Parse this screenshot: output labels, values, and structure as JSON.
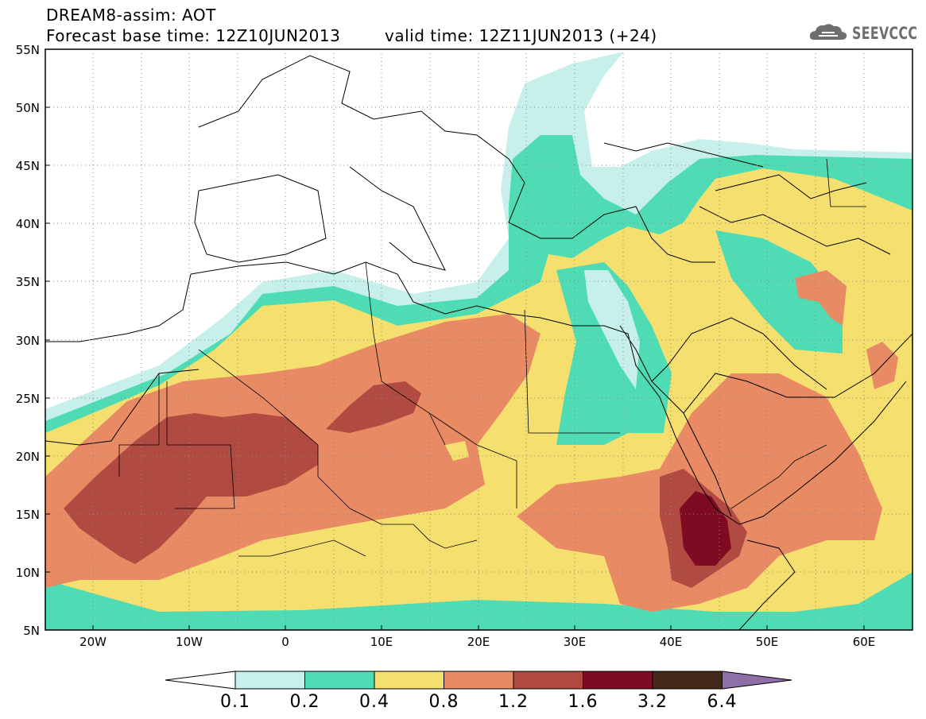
{
  "header": {
    "title_line1": "DREAM8-assim: AOT",
    "title_line2": "Forecast base time: 12Z10JUN2013",
    "valid_time": "valid time: 12Z11JUN2013 (+24)"
  },
  "logo": {
    "text": "SEEVCCC",
    "icon": "cloud-logo-icon"
  },
  "map": {
    "projection": "lat-lon",
    "lon_range": [
      -25,
      65
    ],
    "lat_range": [
      5,
      55
    ],
    "lat_labels": [
      "55N",
      "50N",
      "45N",
      "40N",
      "35N",
      "30N",
      "25N",
      "20N",
      "15N",
      "10N",
      "5N"
    ],
    "lon_labels": [
      "20W",
      "10W",
      "0",
      "10E",
      "20E",
      "30E",
      "40E",
      "50E",
      "60E"
    ],
    "grid": "dotted every 5 degrees"
  },
  "colorbar": {
    "labels": [
      "0.1",
      "0.2",
      "0.4",
      "0.8",
      "1.2",
      "1.6",
      "3.2",
      "6.4"
    ],
    "colors": [
      "#ffffff",
      "#c8f0ea",
      "#4fdcb4",
      "#f5df6e",
      "#e88a64",
      "#b14b42",
      "#7e0b22",
      "#44291a",
      "#8e6fa8"
    ]
  }
}
